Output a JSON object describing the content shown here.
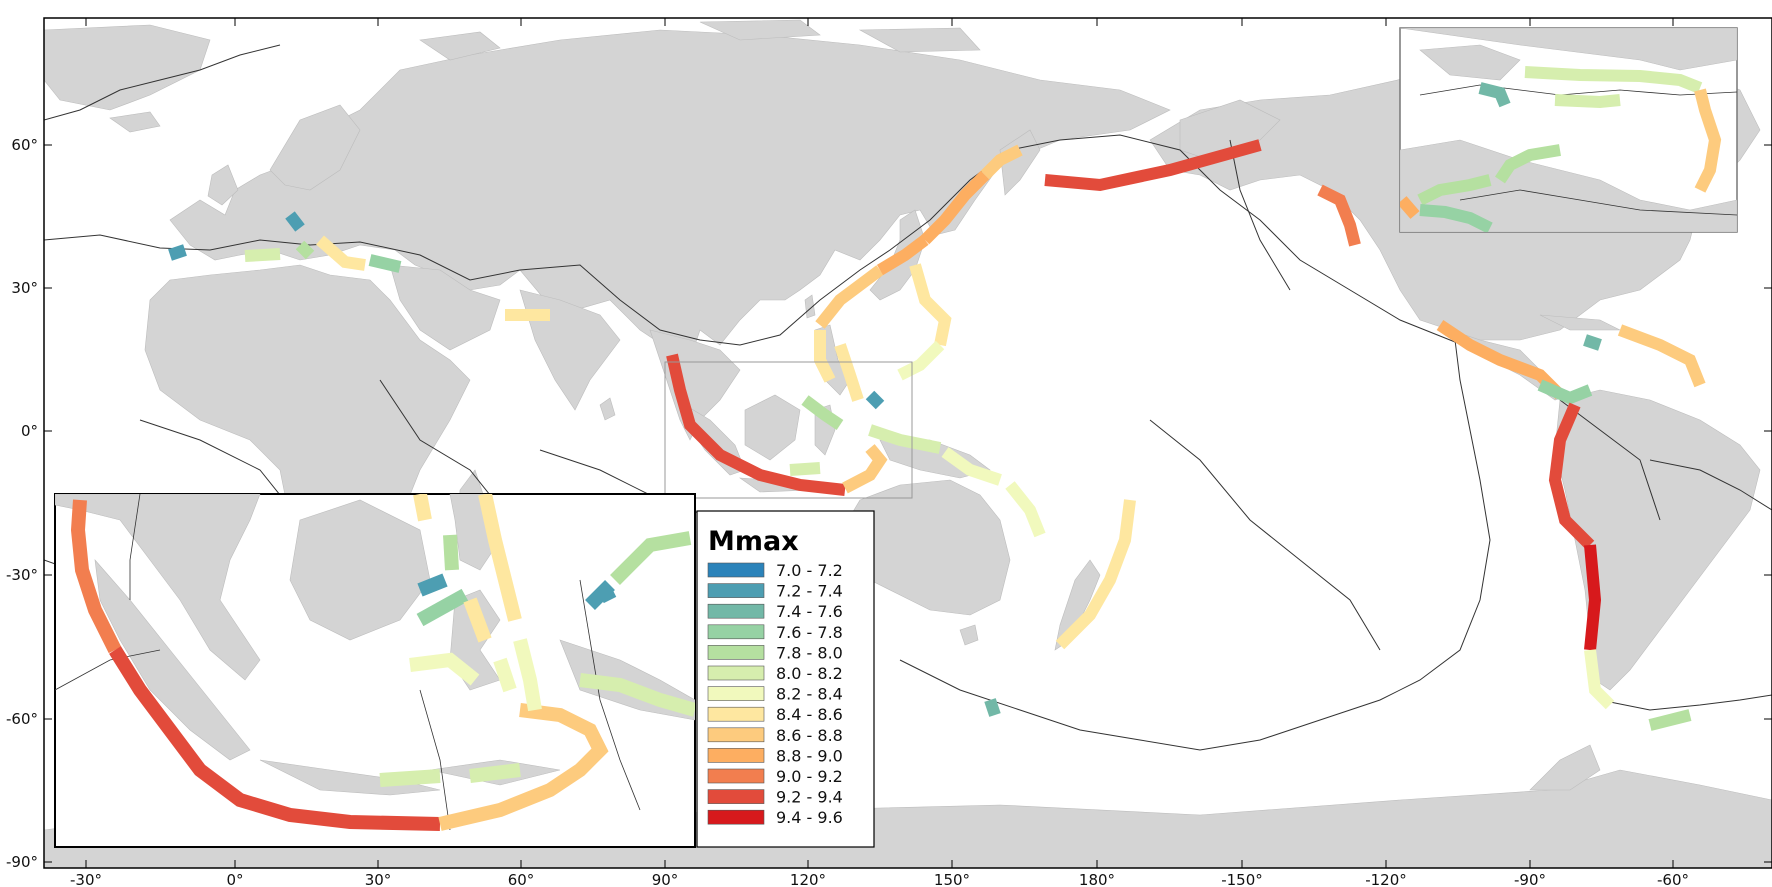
{
  "x_axis": {
    "ticks": [
      "-30°",
      "0°",
      "30°",
      "60°",
      "90°",
      "120°",
      "150°",
      "180°",
      "-150°",
      "-120°",
      "-90°",
      "-60°"
    ]
  },
  "y_axis": {
    "ticks": [
      "60°",
      "30°",
      "0°",
      "-30°",
      "-60°",
      "-90°"
    ]
  },
  "legend": {
    "title": "Mmax",
    "items": [
      {
        "label": "7.0 - 7.2",
        "color": "#2b83ba"
      },
      {
        "label": "7.2 - 7.4",
        "color": "#4d9eb2"
      },
      {
        "label": "7.4 - 7.6",
        "color": "#72b8a7"
      },
      {
        "label": "7.6 - 7.8",
        "color": "#96d2a4"
      },
      {
        "label": "7.8 - 8.0",
        "color": "#b5e0a0"
      },
      {
        "label": "8.0 - 8.2",
        "color": "#d6eeae"
      },
      {
        "label": "8.2 - 8.4",
        "color": "#f1f9bd"
      },
      {
        "label": "8.4 - 8.6",
        "color": "#fee7a0"
      },
      {
        "label": "8.6 - 8.8",
        "color": "#fdcb7e"
      },
      {
        "label": "8.8 - 9.0",
        "color": "#fdae61"
      },
      {
        "label": "9.0 - 9.2",
        "color": "#f27e4f"
      },
      {
        "label": "9.2 - 9.4",
        "color": "#e24b3b"
      },
      {
        "label": "9.4 - 9.6",
        "color": "#d7191c"
      }
    ]
  },
  "colors": {
    "land": "#d4d4d4",
    "ocean": "#ffffff",
    "plate_boundary": "#333333",
    "frame": "#000000"
  }
}
